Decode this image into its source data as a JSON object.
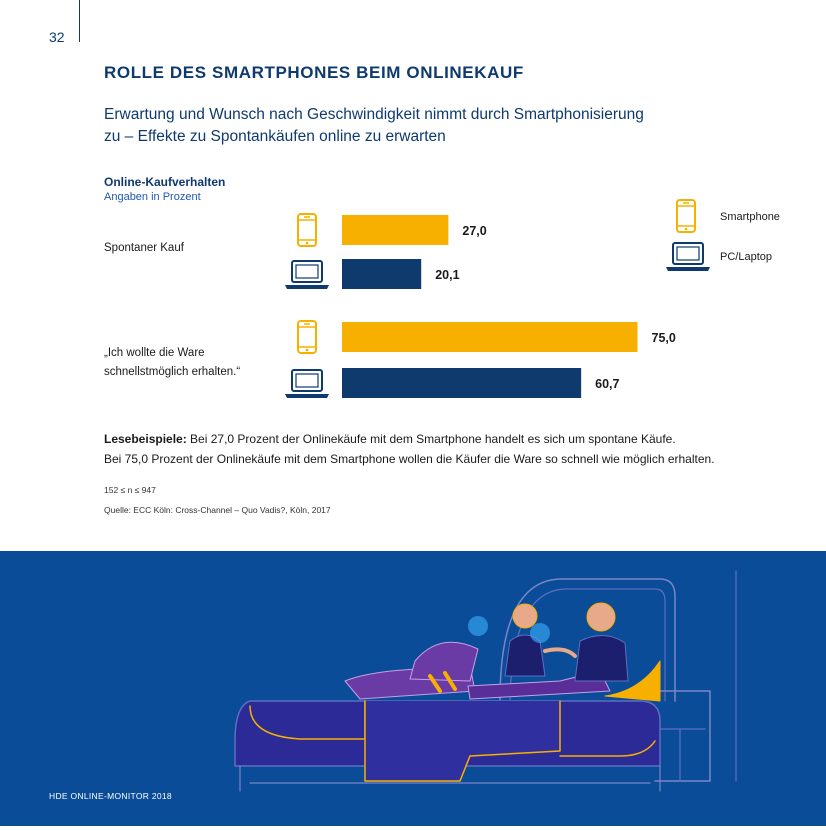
{
  "page": {
    "number": "32",
    "footer": "HDE ONLINE-MONITOR 2018"
  },
  "header": {
    "title": "ROLLE DES SMARTPHONES BEIM ONLINEKAUF",
    "subtitle_line1": "Erwartung und Wunsch nach Geschwindigkeit nimmt durch Smartphonisierung",
    "subtitle_line2": "zu – Effekte zu Spontankäufen online zu erwarten"
  },
  "colors": {
    "smartphone": "#f7b000",
    "pc_laptop": "#0e3a6e",
    "footer_bg": "#0a4c98",
    "title": "#0e3a6e"
  },
  "chart_data": {
    "type": "bar",
    "orientation": "horizontal",
    "title": "Online-Kaufverhalten",
    "subtitle": "Angaben in Prozent",
    "categories": [
      "Spontaner Kauf",
      "„Ich wollte die Ware schnellstmöglich erhalten.“"
    ],
    "category_lines": [
      [
        "Spontaner Kauf"
      ],
      [
        "„Ich wollte die Ware",
        "schnellstmöglich erhalten.“"
      ]
    ],
    "series": [
      {
        "name": "Smartphone",
        "icon": "smartphone-icon",
        "color": "#f7b000",
        "values": [
          27.0,
          75.0
        ],
        "labels": [
          "27,0",
          "75,0"
        ]
      },
      {
        "name": "PC/Laptop",
        "icon": "laptop-icon",
        "color": "#0e3a6e",
        "values": [
          20.1,
          60.7
        ],
        "labels": [
          "20,1",
          "60,7"
        ]
      }
    ],
    "xlim": [
      0,
      100
    ],
    "legend_position": "top-right",
    "grid": false
  },
  "notes": {
    "reading_label": "Lesebeispiele:",
    "reading_line1": " Bei 27,0 Prozent der Onlinekäufe mit dem Smartphone handelt es sich um spontane Käufe.",
    "reading_line2": "Bei 75,0 Prozent der Onlinekäufe mit dem Smartphone wollen die Käufer die Ware so schnell wie möglich erhalten.",
    "sample": "152 ≤ n ≤ 947",
    "source": "Quelle: ECC Köln: Cross-Channel – Quo Vadis?, Köln, 2017"
  },
  "illustration": {
    "subject": "couple-on-bed-with-devices"
  }
}
